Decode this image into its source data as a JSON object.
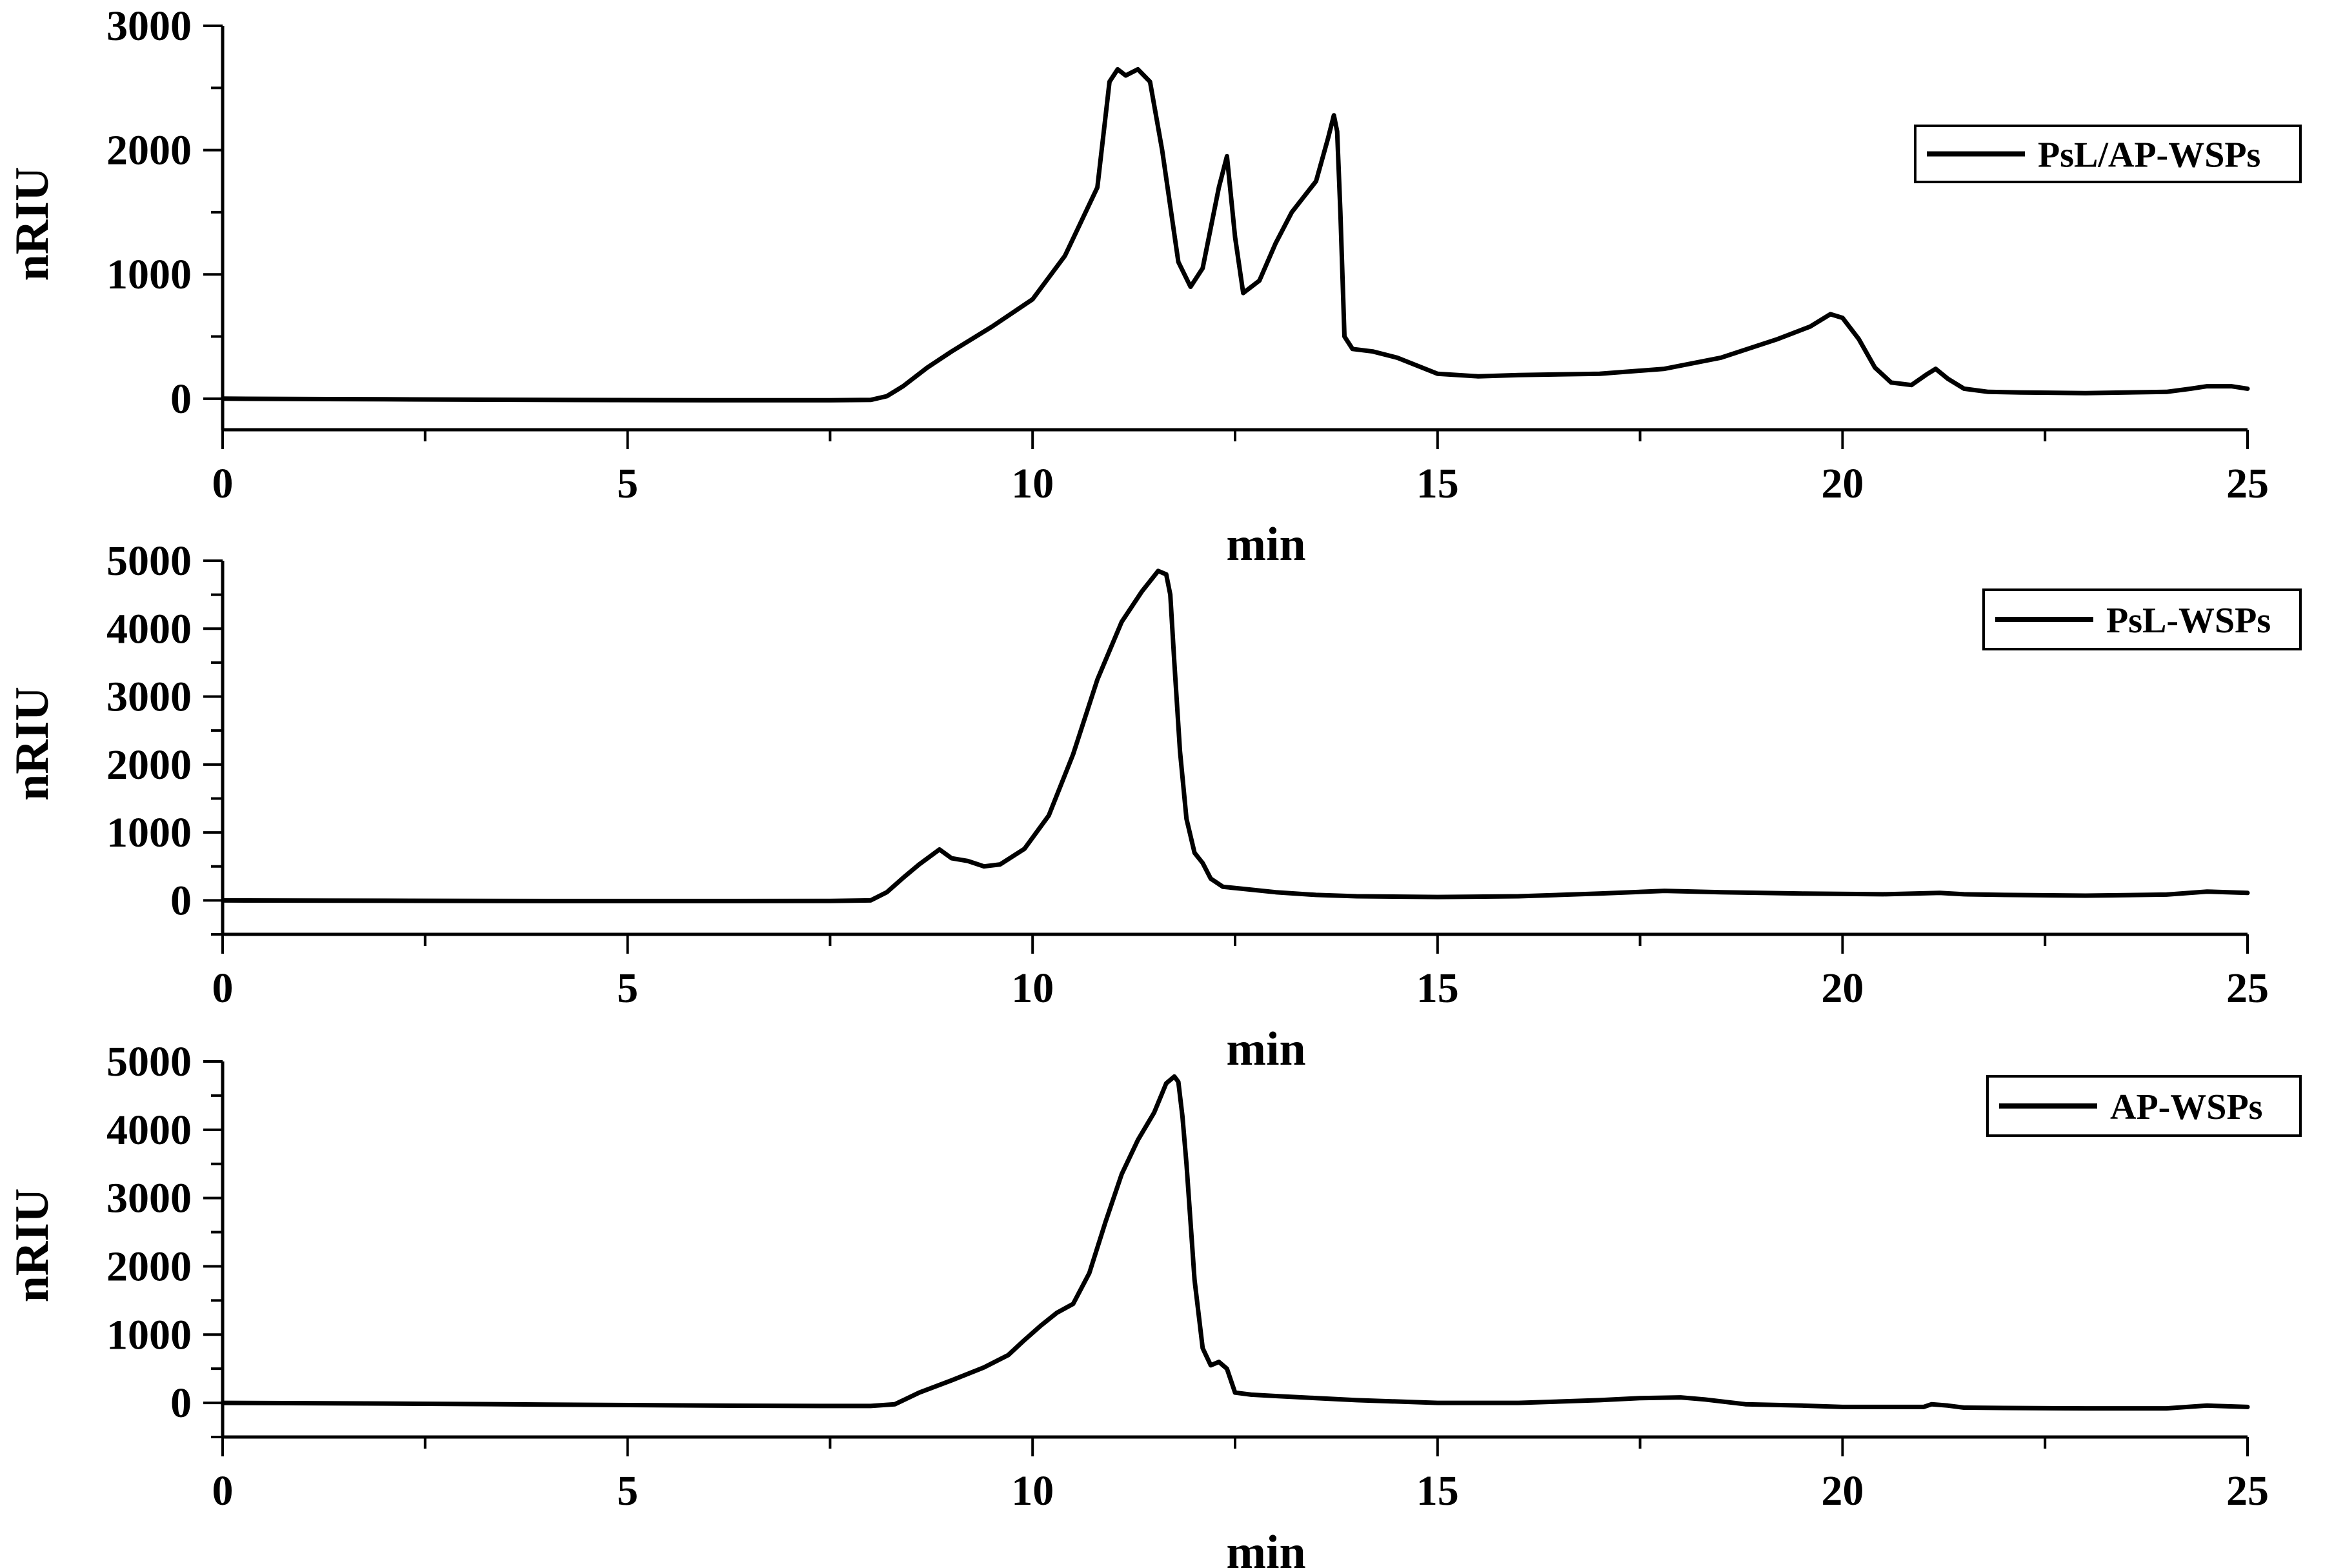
{
  "chart_data": [
    {
      "type": "line",
      "xlabel": "min",
      "ylabel": "nRIU",
      "xlim": [
        0,
        25
      ],
      "ylim": [
        -250,
        3000
      ],
      "xticks": [
        "0",
        "5",
        "10",
        "15",
        "20",
        "25"
      ],
      "yticks": [
        "0",
        "1000",
        "2000",
        "3000"
      ],
      "xticks_values": [
        0,
        5,
        10,
        15,
        20,
        25
      ],
      "yticks_values": [
        0,
        1000,
        2000,
        3000
      ],
      "legend_position": "top-right",
      "series": [
        {
          "name": "PsL/AP-WSPs",
          "color": "#000000",
          "x": [
            0,
            2,
            4,
            6,
            7.5,
            8.0,
            8.2,
            8.4,
            8.7,
            9.0,
            9.5,
            10.0,
            10.4,
            10.8,
            10.95,
            11.05,
            11.15,
            11.3,
            11.45,
            11.6,
            11.8,
            11.95,
            12.1,
            12.3,
            12.4,
            12.5,
            12.6,
            12.8,
            13.0,
            13.2,
            13.5,
            13.65,
            13.72,
            13.76,
            13.8,
            13.85,
            13.95,
            14.2,
            14.5,
            15.0,
            15.5,
            16.0,
            17.0,
            17.8,
            18.5,
            19.2,
            19.6,
            19.85,
            20.0,
            20.2,
            20.4,
            20.6,
            20.85,
            21.05,
            21.15,
            21.3,
            21.5,
            21.8,
            22.2,
            23.0,
            23.5,
            24.0,
            24.3,
            24.5,
            24.8,
            25.0
          ],
          "y": [
            0,
            -5,
            -10,
            -12,
            -12,
            -10,
            20,
            100,
            250,
            380,
            580,
            800,
            1150,
            1700,
            2550,
            2650,
            2600,
            2650,
            2550,
            2000,
            1100,
            900,
            1050,
            1700,
            1950,
            1300,
            850,
            950,
            1250,
            1500,
            1750,
            2100,
            2280,
            2150,
            1500,
            500,
            400,
            380,
            330,
            200,
            180,
            190,
            200,
            240,
            330,
            480,
            580,
            680,
            650,
            480,
            250,
            130,
            110,
            200,
            240,
            160,
            80,
            55,
            50,
            45,
            50,
            55,
            80,
            100,
            100,
            80
          ]
        }
      ]
    },
    {
      "type": "line",
      "xlabel": "min",
      "ylabel": "nRIU",
      "xlim": [
        0,
        25
      ],
      "ylim": [
        -500,
        5000
      ],
      "xticks": [
        "0",
        "5",
        "10",
        "15",
        "20",
        "25"
      ],
      "yticks": [
        "0",
        "1000",
        "2000",
        "3000",
        "4000",
        "5000"
      ],
      "xticks_values": [
        0,
        5,
        10,
        15,
        20,
        25
      ],
      "yticks_values": [
        0,
        1000,
        2000,
        3000,
        4000,
        5000
      ],
      "legend_position": "top-right",
      "series": [
        {
          "name": "PsL-WSPs",
          "color": "#000000",
          "x": [
            0,
            2,
            4,
            6,
            7.5,
            8.0,
            8.2,
            8.4,
            8.6,
            8.85,
            9.0,
            9.2,
            9.4,
            9.6,
            9.9,
            10.2,
            10.5,
            10.8,
            11.1,
            11.35,
            11.55,
            11.65,
            11.7,
            11.75,
            11.82,
            11.9,
            12.0,
            12.1,
            12.2,
            12.35,
            12.6,
            13.0,
            13.5,
            14.0,
            15.0,
            16.0,
            17.0,
            17.8,
            18.5,
            19.5,
            20.5,
            21.2,
            21.5,
            22.0,
            23.0,
            24.0,
            24.5,
            25.0
          ],
          "y": [
            0,
            -5,
            -10,
            -10,
            -8,
            0,
            120,
            330,
            530,
            750,
            620,
            580,
            500,
            530,
            760,
            1250,
            2150,
            3250,
            4100,
            4550,
            4850,
            4800,
            4500,
            3500,
            2200,
            1200,
            700,
            550,
            320,
            200,
            170,
            120,
            80,
            60,
            50,
            60,
            100,
            140,
            120,
            100,
            90,
            110,
            90,
            80,
            70,
            85,
            130,
            110
          ]
        }
      ]
    },
    {
      "type": "line",
      "xlabel": "min",
      "ylabel": "nRIU",
      "xlim": [
        0,
        25
      ],
      "ylim": [
        -500,
        5000
      ],
      "xticks": [
        "0",
        "5",
        "10",
        "15",
        "20",
        "25"
      ],
      "yticks": [
        "0",
        "1000",
        "2000",
        "3000",
        "4000",
        "5000"
      ],
      "xticks_values": [
        0,
        5,
        10,
        15,
        20,
        25
      ],
      "yticks_values": [
        0,
        1000,
        2000,
        3000,
        4000,
        5000
      ],
      "legend_position": "top-right",
      "series": [
        {
          "name": "AP-WSPs",
          "color": "#000000",
          "x": [
            0,
            2,
            4,
            6,
            7.5,
            8.0,
            8.3,
            8.6,
            9.0,
            9.4,
            9.7,
            9.9,
            10.1,
            10.3,
            10.5,
            10.7,
            10.9,
            11.1,
            11.3,
            11.5,
            11.65,
            11.75,
            11.8,
            11.85,
            11.9,
            12.0,
            12.1,
            12.2,
            12.3,
            12.4,
            12.5,
            12.7,
            13.0,
            14.0,
            15.0,
            16.0,
            17.0,
            17.5,
            18.0,
            18.3,
            18.8,
            19.5,
            20.0,
            21.0,
            21.1,
            21.3,
            21.5,
            22.0,
            23.0,
            24.0,
            24.5,
            25.0
          ],
          "y": [
            0,
            -10,
            -25,
            -40,
            -45,
            -45,
            -20,
            150,
            330,
            520,
            700,
            920,
            1130,
            1320,
            1450,
            1900,
            2650,
            3350,
            3850,
            4250,
            4680,
            4780,
            4700,
            4200,
            3500,
            1800,
            800,
            550,
            600,
            500,
            150,
            120,
            100,
            40,
            0,
            0,
            40,
            70,
            80,
            50,
            -20,
            -40,
            -60,
            -60,
            -20,
            -40,
            -70,
            -75,
            -80,
            -80,
            -40,
            -60
          ]
        }
      ]
    }
  ]
}
